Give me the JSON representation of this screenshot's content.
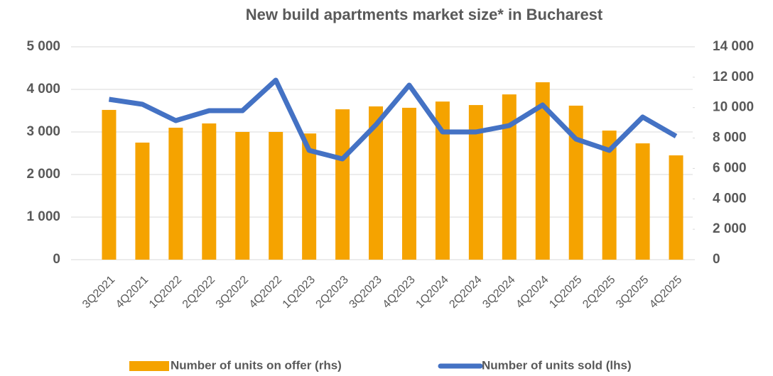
{
  "chart_data": {
    "type": "bar-line",
    "title": "New build apartments market size* in Bucharest",
    "categories": [
      "3Q2021",
      "4Q2021",
      "1Q2022",
      "2Q2022",
      "3Q2022",
      "4Q2022",
      "1Q2023",
      "2Q2023",
      "3Q2023",
      "4Q2023",
      "1Q2024",
      "2Q2024",
      "3Q2024",
      "4Q2024",
      "1Q2025",
      "2Q2025",
      "3Q2025",
      "4Q2025"
    ],
    "series": [
      {
        "name": "Number of units on offer (rhs)",
        "type": "bar",
        "axis": "y2",
        "color": "#f5a300",
        "values": [
          9850,
          7700,
          8680,
          8960,
          8400,
          8400,
          8300,
          9890,
          10080,
          9990,
          10400,
          10170,
          10870,
          11670,
          10130,
          8490,
          7650,
          6860
        ]
      },
      {
        "name": "Number of units sold (lhs)",
        "type": "line",
        "axis": "y",
        "color": "#4472c4",
        "values": [
          3767,
          3650,
          3267,
          3500,
          3500,
          4217,
          2567,
          2367,
          3167,
          4100,
          3000,
          3000,
          3150,
          3633,
          2833,
          2567,
          3350,
          2900
        ]
      }
    ],
    "ylim": [
      0,
      5000
    ],
    "yticks": [
      0,
      {
        "value": 1000,
        "label": "1 000"
      },
      {
        "value": 2000,
        "label": "2 000"
      },
      {
        "value": 3000,
        "label": "3 000"
      },
      {
        "value": 4000,
        "label": "4 000"
      },
      {
        "value": 5000,
        "label": "5 000"
      }
    ],
    "y2lim": [
      0,
      14000
    ],
    "y2ticks": [
      0,
      {
        "value": 2000,
        "label": "2 000"
      },
      {
        "value": 4000,
        "label": "4 000"
      },
      {
        "value": 6000,
        "label": "6 000"
      },
      {
        "value": 8000,
        "label": "8 000"
      },
      {
        "value": 10000,
        "label": "10 000"
      },
      {
        "value": 12000,
        "label": "12 000"
      },
      {
        "value": 14000,
        "label": "14 000"
      }
    ],
    "grid": true,
    "legend": "bottom"
  }
}
